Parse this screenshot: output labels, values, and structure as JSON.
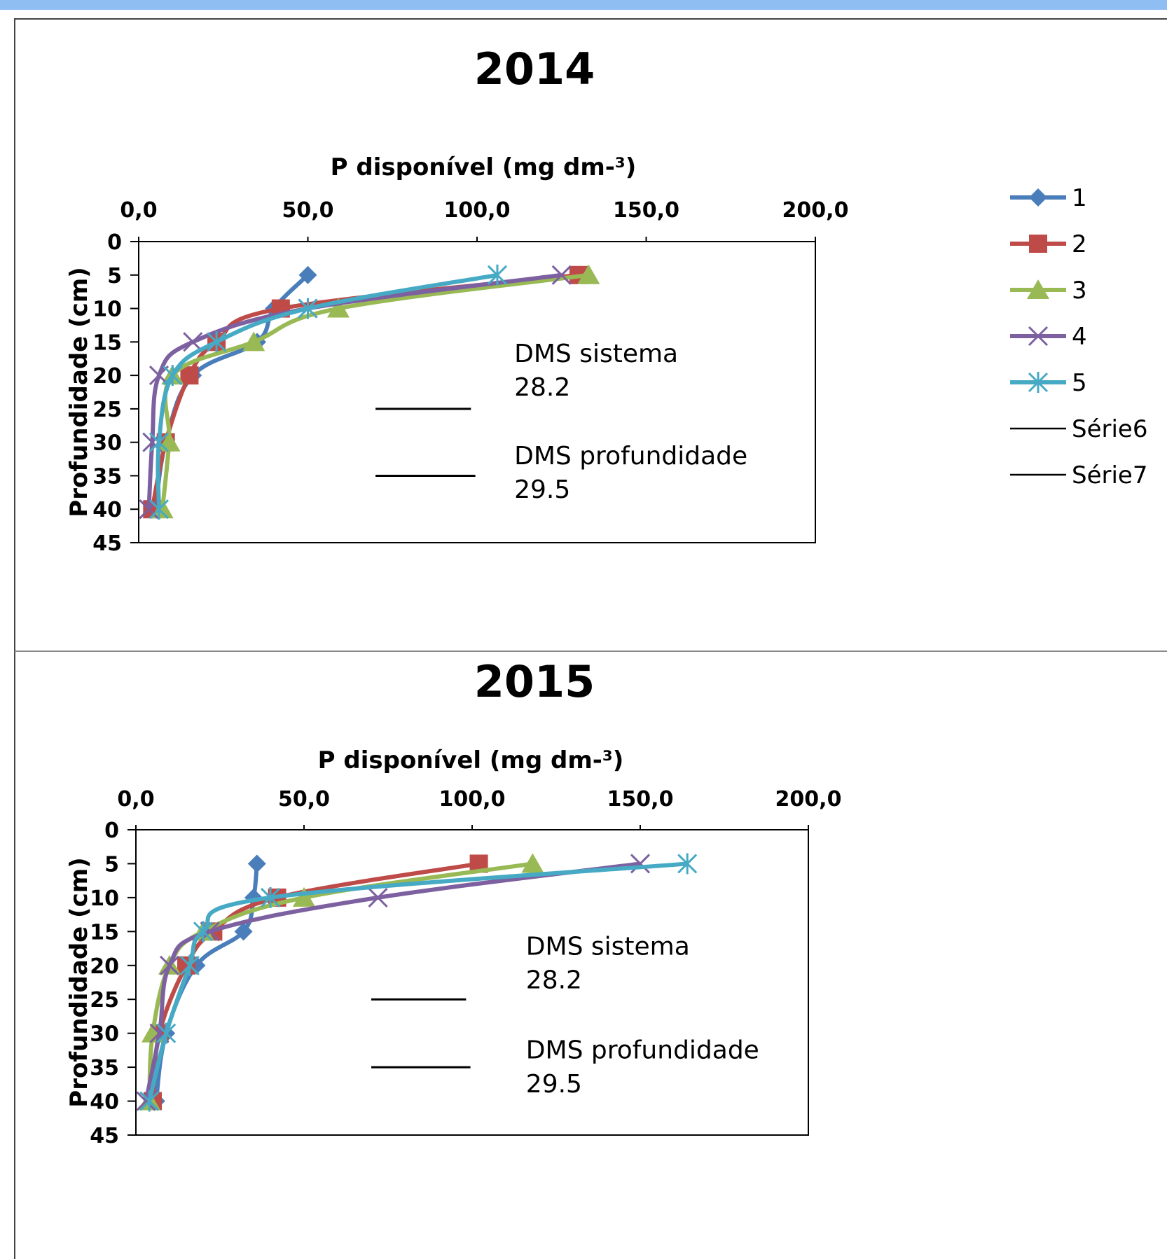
{
  "chart_data": [
    {
      "type": "line",
      "title": "2014",
      "xlabel": "P  disponível (mg dm-³)",
      "ylabel": "Profundidade (cm)",
      "xlim": [
        0,
        200
      ],
      "ylim": [
        0,
        45
      ],
      "x_axis_position": "top",
      "y_axis_inverted": true,
      "x_ticks": [
        "0,0",
        "50,0",
        "100,0",
        "150,0",
        "200,0"
      ],
      "y_ticks": [
        "0",
        "5",
        "10",
        "15",
        "20",
        "25",
        "30",
        "35",
        "40",
        "45"
      ],
      "legend_position": "right",
      "series": [
        {
          "name": "1",
          "color": "#4a7ebb",
          "marker": "diamond",
          "points": [
            [
              50,
              5
            ],
            [
              40,
              10
            ],
            [
              35,
              15
            ],
            [
              16,
              20
            ],
            [
              8,
              30
            ],
            [
              5,
              40
            ]
          ]
        },
        {
          "name": "2",
          "color": "#be4b48",
          "marker": "square",
          "points": [
            [
              130,
              5
            ],
            [
              42,
              10
            ],
            [
              23,
              15
            ],
            [
              15,
              20
            ],
            [
              8,
              30
            ],
            [
              4,
              40
            ]
          ]
        },
        {
          "name": "3",
          "color": "#98b954",
          "marker": "triangle",
          "points": [
            [
              133,
              5
            ],
            [
              59,
              10
            ],
            [
              34,
              15
            ],
            [
              10,
              20
            ],
            [
              9,
              30
            ],
            [
              7,
              40
            ]
          ]
        },
        {
          "name": "4",
          "color": "#7d60a0",
          "marker": "x",
          "points": [
            [
              125,
              5
            ],
            [
              50,
              10
            ],
            [
              16,
              15
            ],
            [
              6,
              20
            ],
            [
              4,
              30
            ],
            [
              3,
              40
            ]
          ]
        },
        {
          "name": "5",
          "color": "#46aac5",
          "marker": "star",
          "points": [
            [
              106,
              5
            ],
            [
              50,
              10
            ],
            [
              23,
              15
            ],
            [
              10,
              20
            ],
            [
              6,
              30
            ],
            [
              6,
              40
            ]
          ]
        }
      ],
      "lines": [
        {
          "name": "Série6",
          "color": "#000000",
          "points": [
            [
              70,
              25
            ],
            [
              98.2,
              25
            ]
          ]
        },
        {
          "name": "Série7",
          "color": "#000000",
          "points": [
            [
              70,
              35
            ],
            [
              99.5,
              35
            ]
          ]
        }
      ],
      "annotations": [
        {
          "line1": "DMS sistema",
          "line2": "28.2",
          "x": 111,
          "y1": 18,
          "y2": 23
        },
        {
          "line1": "DMS profundidade",
          "line2": "29.5",
          "x": 111,
          "y1": 33.3,
          "y2": 38.3
        }
      ]
    },
    {
      "type": "line",
      "title": "2015",
      "xlabel": "P disponível (mg dm-³)",
      "ylabel": "Profundidade (cm)",
      "xlim": [
        0,
        200
      ],
      "ylim": [
        0,
        45
      ],
      "x_axis_position": "top",
      "y_axis_inverted": true,
      "x_ticks": [
        "0,0",
        "50,0",
        "100,0",
        "150,0",
        "200,0"
      ],
      "y_ticks": [
        "0",
        "5",
        "10",
        "15",
        "20",
        "25",
        "30",
        "35",
        "40",
        "45"
      ],
      "legend_position": "none",
      "series": [
        {
          "name": "1",
          "color": "#4a7ebb",
          "marker": "diamond",
          "points": [
            [
              36,
              5
            ],
            [
              35,
              10
            ],
            [
              32,
              15
            ],
            [
              18,
              20
            ],
            [
              9,
              30
            ],
            [
              6,
              40
            ]
          ]
        },
        {
          "name": "2",
          "color": "#be4b48",
          "marker": "square",
          "points": [
            [
              102,
              5
            ],
            [
              42,
              10
            ],
            [
              23,
              15
            ],
            [
              15,
              20
            ],
            [
              7,
              30
            ],
            [
              5,
              40
            ]
          ]
        },
        {
          "name": "3",
          "color": "#98b954",
          "marker": "triangle",
          "points": [
            [
              118,
              5
            ],
            [
              50,
              10
            ],
            [
              20,
              15
            ],
            [
              10,
              20
            ],
            [
              5,
              30
            ],
            [
              4,
              40
            ]
          ]
        },
        {
          "name": "4",
          "color": "#7d60a0",
          "marker": "x",
          "points": [
            [
              150,
              5
            ],
            [
              72,
              10
            ],
            [
              22,
              15
            ],
            [
              10,
              20
            ],
            [
              7,
              30
            ],
            [
              3,
              40
            ]
          ]
        },
        {
          "name": "5",
          "color": "#46aac5",
          "marker": "star",
          "points": [
            [
              164,
              5
            ],
            [
              40,
              10
            ],
            [
              20,
              15
            ],
            [
              16,
              20
            ],
            [
              9,
              30
            ],
            [
              4,
              40
            ]
          ]
        }
      ],
      "lines": [
        {
          "name": "Série6",
          "color": "#000000",
          "points": [
            [
              70,
              25
            ],
            [
              98.2,
              25
            ]
          ]
        },
        {
          "name": "Série7",
          "color": "#000000",
          "points": [
            [
              70,
              35
            ],
            [
              99.5,
              35
            ]
          ]
        }
      ],
      "annotations": [
        {
          "line1": "DMS sistema",
          "line2": "28.2",
          "x": 116,
          "y1": 18.4,
          "y2": 23.4
        },
        {
          "line1": "DMS profundidade",
          "line2": "29.5",
          "x": 116,
          "y1": 33.7,
          "y2": 38.7
        }
      ]
    }
  ]
}
